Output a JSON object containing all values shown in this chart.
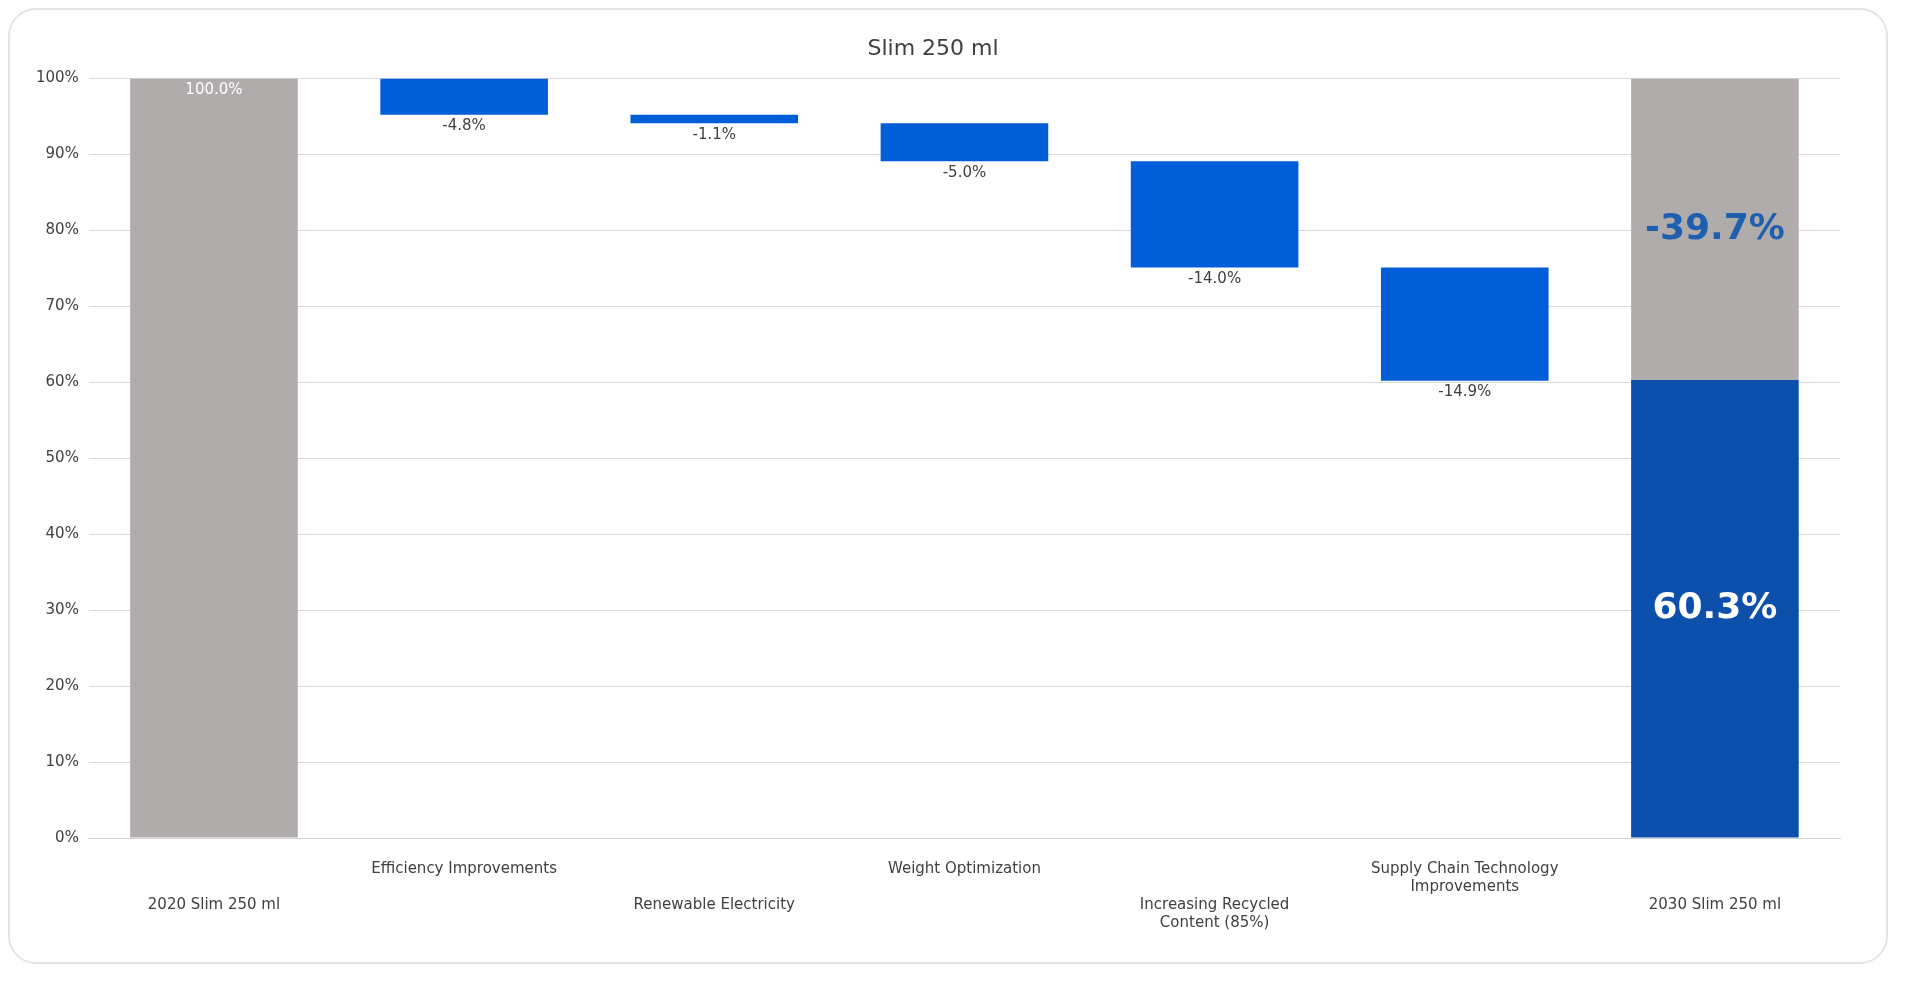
{
  "chart_data": {
    "type": "bar",
    "title": "Slim 250 ml",
    "categories": [
      "2020 Slim 250 ml",
      "Efficiency Improvements",
      "Renewable Electricity",
      "Weight Optimization",
      "Increasing Recycled Content (85%)",
      "Supply Chain Technology Improvements",
      "2030 Slim 250 ml"
    ],
    "series": [
      {
        "color": "#b0acab",
        "values": [
          100,
          null,
          null,
          null,
          null,
          null,
          -39.7
        ],
        "base": [
          0,
          null,
          null,
          null,
          null,
          null,
          100
        ],
        "value_labels": [
          "100.0%",
          null,
          null,
          null,
          null,
          null,
          "-39.7%"
        ]
      },
      {
        "color": "#005ed8",
        "values": [
          null,
          -4.8,
          -1.1,
          -5.0,
          -14.0,
          -14.9,
          null
        ],
        "base": [
          null,
          100,
          95.2,
          94.1,
          89.1,
          75.1,
          null
        ],
        "value_labels": [
          null,
          "-4.8%",
          "-1.1%",
          "-5.0%",
          "-14.0%",
          "-14.9%",
          null
        ]
      },
      {
        "color": "#0c50ac",
        "values": [
          null,
          null,
          null,
          null,
          null,
          null,
          60.3
        ],
        "base": [
          null,
          null,
          null,
          null,
          null,
          null,
          0
        ],
        "value_labels": [
          null,
          null,
          null,
          null,
          null,
          null,
          "60.3%"
        ]
      }
    ],
    "ylim": [
      0,
      100
    ],
    "yticks": [
      {
        "value": 0,
        "label": "0%"
      },
      {
        "value": 10,
        "label": "10%"
      },
      {
        "value": 20,
        "label": "20%"
      },
      {
        "value": 30,
        "label": "30%"
      },
      {
        "value": 40,
        "label": "40%"
      },
      {
        "value": 50,
        "label": "50%"
      },
      {
        "value": 60,
        "label": "60%"
      },
      {
        "value": 70,
        "label": "70%"
      },
      {
        "value": 80,
        "label": "80%"
      },
      {
        "value": 90,
        "label": "90%"
      },
      {
        "value": 100,
        "label": "100%"
      }
    ],
    "grid": "y",
    "legend": false
  }
}
